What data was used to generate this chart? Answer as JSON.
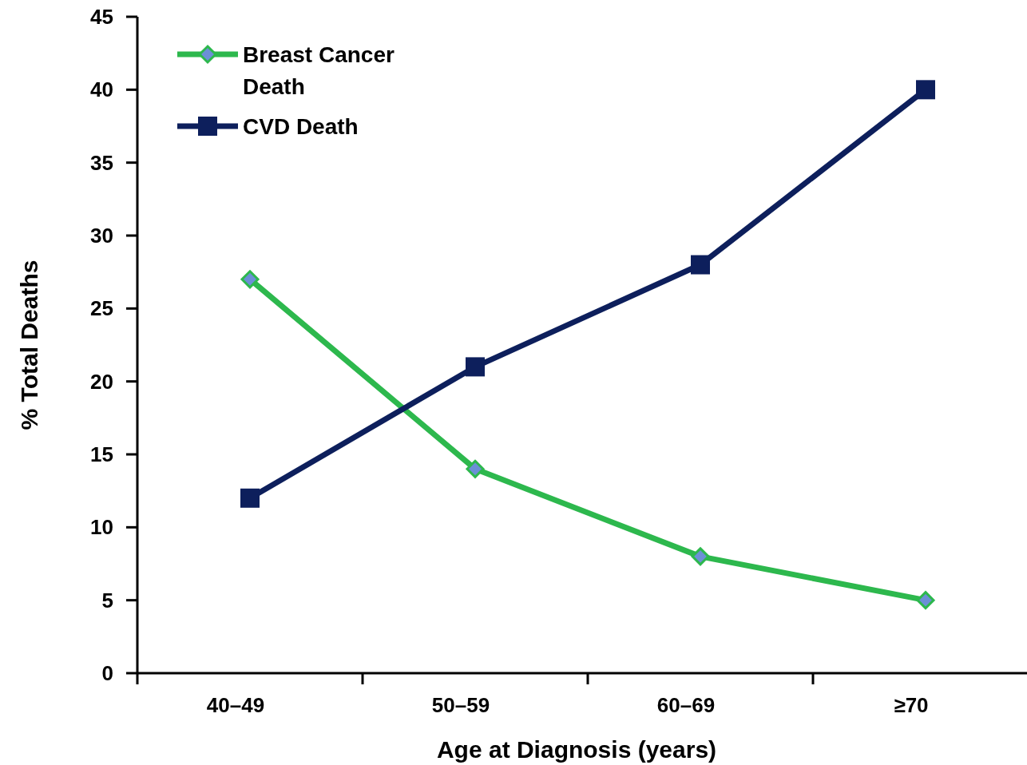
{
  "chart_data": {
    "type": "line",
    "xlabel": "Age at Diagnosis (years)",
    "ylabel": "% Total Deaths",
    "categories": [
      "40–49",
      "50–59",
      "60–69",
      "≥70"
    ],
    "series": [
      {
        "name": "Breast Cancer Death",
        "color": "#2db84d",
        "marker": "diamond",
        "values": [
          27,
          14,
          8,
          5
        ]
      },
      {
        "name": "CVD Death",
        "color": "#0d1f5c",
        "marker": "square",
        "values": [
          12,
          21,
          28,
          40
        ]
      }
    ],
    "ylim": [
      0,
      45
    ],
    "yticks": [
      0,
      5,
      10,
      15,
      20,
      25,
      30,
      35,
      40,
      45
    ],
    "grid": false,
    "legend": "top left"
  }
}
